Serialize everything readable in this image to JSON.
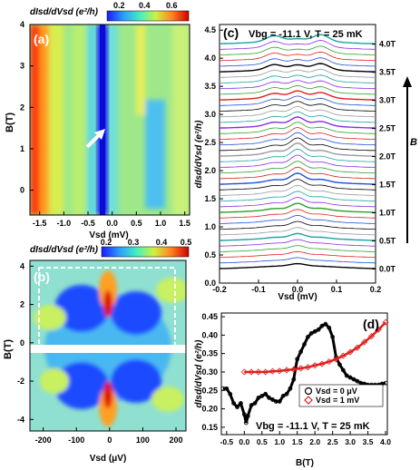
{
  "colors": {
    "colormap": [
      "#1a1aff",
      "#2b6bff",
      "#28c8ff",
      "#5ff0a8",
      "#d8f050",
      "#ffb020",
      "#ff3010",
      "#d00000"
    ],
    "curve_palette": [
      "#000000",
      "#1f4fd6",
      "#e0201f",
      "#2aa02a",
      "#8a2be2",
      "#1aa0a0",
      "#999999"
    ],
    "d_bias0": "#000000",
    "d_bias1": "#e02020"
  },
  "chart_data": [
    {
      "type": "heatmap",
      "panel_label": "(a)",
      "colorbar": {
        "title": "dI/dV (e²/h)",
        "ticks": [
          "0.2",
          "0.4",
          "0.6"
        ],
        "range": [
          0.15,
          0.65
        ]
      },
      "xlabel": "V_sd (mV)",
      "ylabel": "B(T)",
      "xlim": [
        -1.7,
        1.6
      ],
      "ylim": [
        -0.6,
        4.0
      ],
      "xticks": [
        "-1.5",
        "-1.0",
        "-0.5",
        "0.0",
        "0.5",
        "1.0",
        "1.5"
      ],
      "yticks": [
        "4",
        "3",
        "2",
        "1",
        "0"
      ],
      "annotations": [
        "white arrow pointing to zero-bias peak near B≈1.2 T"
      ]
    },
    {
      "type": "heatmap",
      "panel_label": "(b)",
      "colorbar": {
        "title": "dI/dV (e²/h)",
        "ticks": [
          "0.2",
          "0.3",
          "0.4",
          "0.5"
        ],
        "range": [
          0.15,
          0.5
        ]
      },
      "xlabel": "V_sd (μV)",
      "ylabel": "B(T)",
      "xlim": [
        -240,
        230
      ],
      "ylim": [
        -4.6,
        4.3
      ],
      "xticks": [
        "-200",
        "-100",
        "0",
        "100",
        "200"
      ],
      "yticks": [
        "4",
        "2",
        "0",
        "-2",
        "-4"
      ],
      "annotations": [
        "white dashed box over V_sd -200..200 μV, B 0..4 T"
      ]
    },
    {
      "type": "line",
      "panel_label": "(c)",
      "title": "Vbg = -11.1 V, T = 25 mK",
      "xlabel": "V_sd (mV)",
      "ylabel": "dI/dV (e²/h)",
      "xlim": [
        -0.2,
        0.2
      ],
      "ylim": [
        0.0,
        4.6
      ],
      "xticks": [
        "-0.2",
        "-0.1",
        "0.0",
        "0.1",
        "0.2"
      ],
      "yticks": [
        "0.0",
        "0.5",
        "1.0",
        "1.5",
        "2.0",
        "2.5",
        "3.0",
        "3.5",
        "4.0",
        "4.5"
      ],
      "right_ticks": [
        "4.0T",
        "3.5T",
        "3.0T",
        "2.5T",
        "2.0T",
        "1.5T",
        "1.0T",
        "0.5T",
        "0.0T"
      ],
      "right_axis_label": "B",
      "n_curves": 41,
      "b_step_T": 0.1,
      "offset_per_curve": 0.1
    },
    {
      "type": "line",
      "panel_label": "(d)",
      "title": "Vbg = -11.1 V, T = 25 mK",
      "xlabel": "B(T)",
      "ylabel": "dI/dV (e²/h)",
      "xlim": [
        -0.65,
        4.05
      ],
      "ylim": [
        0.13,
        0.46
      ],
      "xticks": [
        "-0.5",
        "0.0",
        "0.5",
        "1.0",
        "1.5",
        "2.0",
        "2.5",
        "3.0",
        "3.5",
        "4.0"
      ],
      "yticks": [
        "0.45",
        "0.40",
        "0.35",
        "0.30",
        "0.25",
        "0.20",
        "0.15"
      ],
      "series": [
        {
          "name": "Vsd = 0 μV",
          "marker": "circle",
          "x": [
            -0.6,
            -0.5,
            -0.4,
            -0.3,
            -0.2,
            -0.1,
            0.0,
            0.05,
            0.1,
            0.2,
            0.3,
            0.4,
            0.5,
            0.6,
            0.7,
            0.8,
            0.9,
            1.0,
            1.1,
            1.2,
            1.3,
            1.4,
            1.45,
            1.5,
            1.6,
            1.7,
            1.8,
            1.9,
            2.0,
            2.1,
            2.2,
            2.3,
            2.4,
            2.5,
            2.6,
            2.7,
            2.8,
            2.9,
            3.0,
            3.1,
            3.2,
            3.3,
            3.4,
            3.5,
            3.6,
            3.7,
            3.8,
            3.9,
            4.0
          ],
          "y": [
            0.255,
            0.255,
            0.24,
            0.215,
            0.205,
            0.215,
            0.185,
            0.162,
            0.18,
            0.21,
            0.215,
            0.23,
            0.235,
            0.24,
            0.23,
            0.225,
            0.22,
            0.22,
            0.235,
            0.24,
            0.255,
            0.28,
            0.31,
            0.335,
            0.355,
            0.375,
            0.395,
            0.405,
            0.41,
            0.415,
            0.425,
            0.43,
            0.42,
            0.395,
            0.34,
            0.32,
            0.305,
            0.29,
            0.285,
            0.28,
            0.275,
            0.27,
            0.268,
            0.265,
            0.265,
            0.265,
            0.265,
            0.268,
            0.27
          ]
        },
        {
          "name": "Vsd = 1 mV",
          "marker": "diamond",
          "x": [
            0.0,
            0.2,
            0.4,
            0.6,
            0.8,
            1.0,
            1.2,
            1.4,
            1.6,
            1.8,
            2.0,
            2.2,
            2.4,
            2.6,
            2.8,
            3.0,
            3.2,
            3.4,
            3.6,
            3.8,
            4.0
          ],
          "y": [
            0.3,
            0.3,
            0.3,
            0.3,
            0.302,
            0.303,
            0.305,
            0.307,
            0.31,
            0.313,
            0.318,
            0.322,
            0.328,
            0.335,
            0.344,
            0.354,
            0.366,
            0.381,
            0.397,
            0.415,
            0.435
          ]
        }
      ],
      "legend": "lower-right"
    }
  ],
  "text": {
    "a_label": "(a)",
    "a_cb_title": "dIsd/dVsd (e²/h)",
    "a_cb_t1": "0.2",
    "a_cb_t2": "0.4",
    "a_cb_t3": "0.6",
    "a_ylabel": "B(T)",
    "a_xlabel": "Vsd (mV)",
    "a_xt": [
      "-1.5",
      "-1.0",
      "-0.5",
      "0.0",
      "0.5",
      "1.0",
      "1.5"
    ],
    "a_yt": [
      "4",
      "3",
      "2",
      "1",
      "0"
    ],
    "b_label": "(b)",
    "b_cb_title": "dIsd/dVsd (e²/h)",
    "b_cb_t": [
      "0.2",
      "0.3",
      "0.4",
      "0.5"
    ],
    "b_ylabel": "B(T)",
    "b_xlabel": "Vsd (μV)",
    "b_xt": [
      "-200",
      "-100",
      "0",
      "100",
      "200"
    ],
    "b_yt": [
      "4",
      "2",
      "0",
      "-2",
      "-4"
    ],
    "c_label": "(c)",
    "c_title": "Vbg = -11.1 V, T = 25 mK",
    "c_ylabel": "dIsd/dVsd (e²/h)",
    "c_xlabel": "Vsd (mV)",
    "c_xt": [
      "-0.2",
      "-0.1",
      "0.0",
      "0.1",
      "0.2"
    ],
    "c_yt": [
      "0.0",
      "0.5",
      "1.0",
      "1.5",
      "2.0",
      "2.5",
      "3.0",
      "3.5",
      "4.0",
      "4.5"
    ],
    "c_rt": [
      "4.0T",
      "3.5T",
      "3.0T",
      "2.5T",
      "2.0T",
      "1.5T",
      "1.0T",
      "0.5T",
      "0.0T"
    ],
    "c_B": "B",
    "d_label": "(d)",
    "d_title": "Vbg = -11.1 V, T = 25 mK",
    "d_ylabel": "dIsd/dVsd (e²/h)",
    "d_xlabel": "B(T)",
    "d_xt": [
      "-0.5",
      "0.0",
      "0.5",
      "1.0",
      "1.5",
      "2.0",
      "2.5",
      "3.0",
      "3.5",
      "4.0"
    ],
    "d_yt": [
      "0.45",
      "0.40",
      "0.35",
      "0.30",
      "0.25",
      "0.20",
      "0.15"
    ],
    "d_leg1": "Vsd = 0 μV",
    "d_leg2": "Vsd = 1 mV"
  }
}
